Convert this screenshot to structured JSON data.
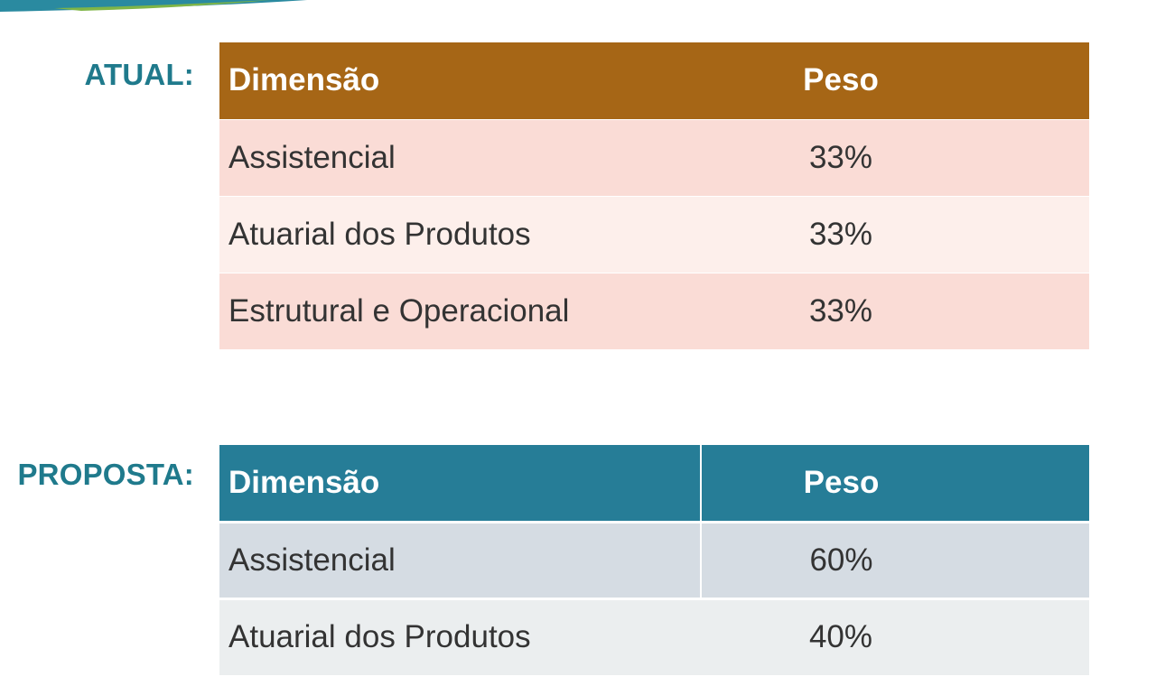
{
  "atual": {
    "label": "ATUAL:",
    "header": {
      "dimension": "Dimensão",
      "weight": "Peso"
    },
    "rows": [
      {
        "dimension": "Assistencial",
        "weight": "33%"
      },
      {
        "dimension": "Atuarial dos Produtos",
        "weight": "33%"
      },
      {
        "dimension": "Estrutural e Operacional",
        "weight": "33%"
      }
    ]
  },
  "proposta": {
    "label": "PROPOSTA:",
    "header": {
      "dimension": "Dimensão",
      "weight": "Peso"
    },
    "rows": [
      {
        "dimension": "Assistencial",
        "weight": "60%"
      },
      {
        "dimension": "Atuarial dos Produtos",
        "weight": "40%"
      }
    ]
  },
  "colors": {
    "label_text": "#1f7a8c",
    "atual_header": "#a66616",
    "atual_row_dark": "#fadcd6",
    "atual_row_light": "#fdefeb",
    "proposta_header": "#267d97",
    "proposta_row_dark": "#d5dce3",
    "proposta_row_light": "#ebeeef"
  }
}
